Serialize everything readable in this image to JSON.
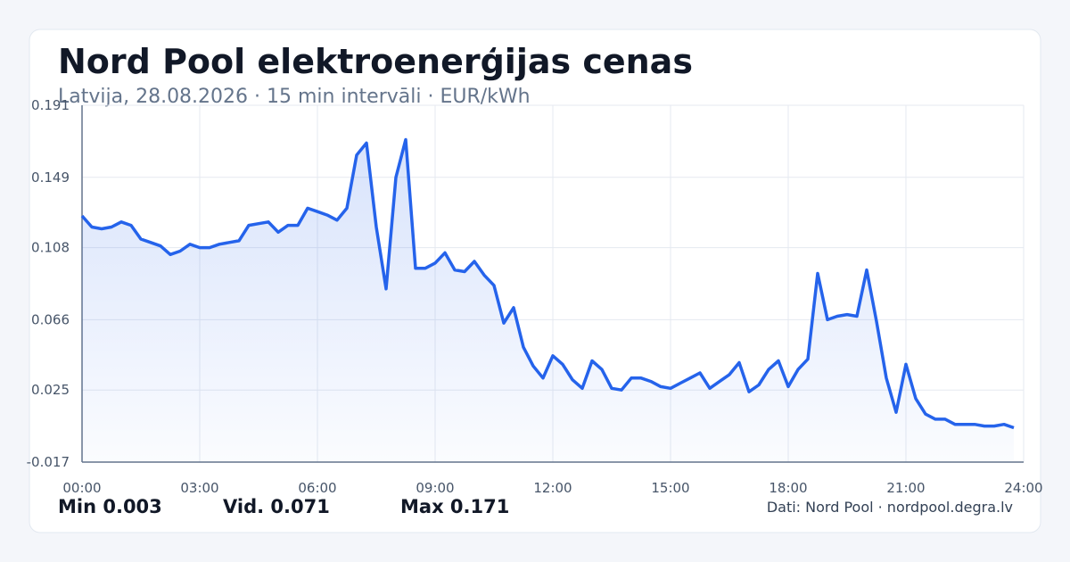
{
  "chart_data": {
    "type": "line",
    "title": "Nord Pool elektroenerģijas cenas",
    "subtitle": "Latvija, 28.08.2026 · 15 min intervāli · EUR/kWh",
    "stats": [
      "Min 0.003",
      "Vid. 0.071",
      "Max 0.171"
    ],
    "source": "Dati: Nord Pool · nordpool.degra.lv",
    "color": "#2563eb",
    "grid": true,
    "xlim": [
      0,
      24
    ],
    "xticks": [
      {
        "value": 0,
        "label": "00:00"
      },
      {
        "value": 3,
        "label": "03:00"
      },
      {
        "value": 6,
        "label": "06:00"
      },
      {
        "value": 9,
        "label": "09:00"
      },
      {
        "value": 12,
        "label": "12:00"
      },
      {
        "value": 15,
        "label": "15:00"
      },
      {
        "value": 18,
        "label": "18:00"
      },
      {
        "value": 21,
        "label": "21:00"
      },
      {
        "value": 24,
        "label": "24:00"
      }
    ],
    "ylim": [
      -0.017,
      0.191
    ],
    "yticks": [
      -0.017,
      0.025,
      0.066,
      0.108,
      0.149,
      0.191
    ],
    "x": [
      0,
      0.25,
      0.5,
      0.75,
      1,
      1.25,
      1.5,
      1.75,
      2,
      2.25,
      2.5,
      2.75,
      3,
      3.25,
      3.5,
      3.75,
      4,
      4.25,
      4.5,
      4.75,
      5,
      5.25,
      5.5,
      5.75,
      6,
      6.25,
      6.5,
      6.75,
      7,
      7.25,
      7.5,
      7.75,
      8,
      8.25,
      8.5,
      8.75,
      9,
      9.25,
      9.5,
      9.75,
      10,
      10.25,
      10.5,
      10.75,
      11,
      11.25,
      11.5,
      11.75,
      12,
      12.25,
      12.5,
      12.75,
      13,
      13.25,
      13.5,
      13.75,
      14,
      14.25,
      14.5,
      14.75,
      15,
      15.25,
      15.5,
      15.75,
      16,
      16.25,
      16.5,
      16.75,
      17,
      17.25,
      17.5,
      17.75,
      18,
      18.25,
      18.5,
      18.75,
      19,
      19.25,
      19.5,
      19.75,
      20,
      20.25,
      20.5,
      20.75,
      21,
      21.25,
      21.5,
      21.75,
      22,
      22.25,
      22.5,
      22.75,
      23,
      23.25,
      23.5,
      23.75
    ],
    "values": [
      0.1265,
      0.12,
      0.119,
      0.12,
      0.123,
      0.121,
      0.113,
      0.111,
      0.109,
      0.104,
      0.106,
      0.11,
      0.108,
      0.108,
      0.11,
      0.111,
      0.112,
      0.121,
      0.122,
      0.123,
      0.117,
      0.121,
      0.121,
      0.131,
      0.129,
      0.127,
      0.124,
      0.131,
      0.162,
      0.169,
      0.12,
      0.084,
      0.149,
      0.171,
      0.096,
      0.096,
      0.099,
      0.105,
      0.095,
      0.094,
      0.1,
      0.092,
      0.086,
      0.064,
      0.073,
      0.05,
      0.039,
      0.032,
      0.045,
      0.04,
      0.031,
      0.026,
      0.042,
      0.037,
      0.026,
      0.025,
      0.032,
      0.032,
      0.03,
      0.027,
      0.026,
      0.029,
      0.032,
      0.035,
      0.026,
      0.03,
      0.034,
      0.041,
      0.024,
      0.028,
      0.037,
      0.042,
      0.027,
      0.037,
      0.043,
      0.093,
      0.066,
      0.068,
      0.069,
      0.068,
      0.095,
      0.065,
      0.032,
      0.012,
      0.04,
      0.02,
      0.011,
      0.008,
      0.008,
      0.005,
      0.005,
      0.005,
      0.004,
      0.004,
      0.005,
      0.003
    ]
  }
}
